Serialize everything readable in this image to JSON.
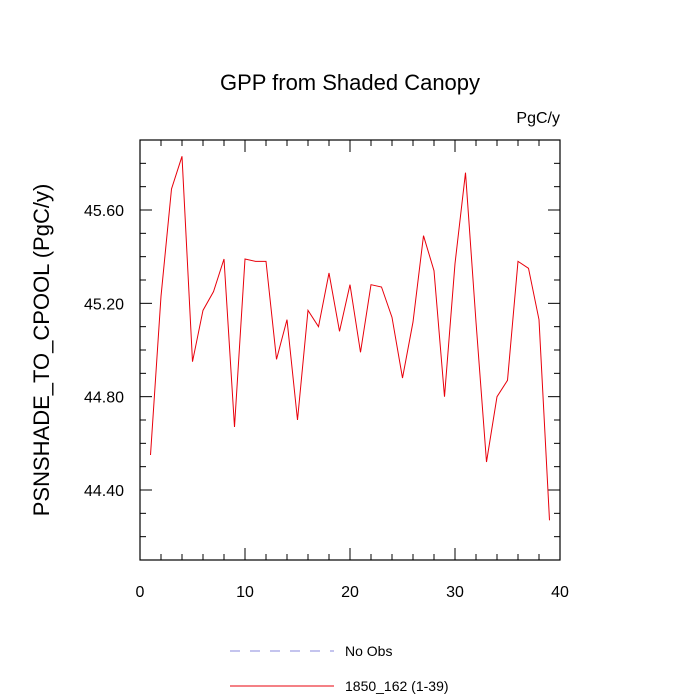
{
  "chart_data": {
    "type": "line",
    "title": "GPP from Shaded Canopy",
    "units": "PgC/y",
    "xlabel": "",
    "ylabel": "PSNSHADE_TO_CPOOL  (PgC/y)",
    "xlim": [
      0,
      40
    ],
    "ylim": [
      44.1,
      45.9
    ],
    "x_ticks": [
      0,
      10,
      20,
      30,
      40
    ],
    "x_tick_labels": [
      "0",
      "10",
      "20",
      "30",
      "40"
    ],
    "y_ticks": [
      44.4,
      44.8,
      45.2,
      45.6
    ],
    "y_tick_labels": [
      "44.40",
      "44.80",
      "45.20",
      "45.60"
    ],
    "grid": false,
    "legend_position": "bottom",
    "series": [
      {
        "name": "No Obs",
        "color": "#8888dd",
        "dash": true,
        "x": [],
        "values": []
      },
      {
        "name": "1850_162 (1-39)",
        "color": "#e8000b",
        "dash": false,
        "x": [
          1,
          2,
          3,
          4,
          5,
          6,
          7,
          8,
          9,
          10,
          11,
          12,
          13,
          14,
          15,
          16,
          17,
          18,
          19,
          20,
          21,
          22,
          23,
          24,
          25,
          26,
          27,
          28,
          29,
          30,
          31,
          32,
          33,
          34,
          35,
          36,
          37,
          38,
          39
        ],
        "values": [
          44.55,
          45.23,
          45.69,
          45.83,
          44.95,
          45.17,
          45.25,
          45.39,
          44.67,
          45.39,
          45.38,
          45.38,
          44.96,
          45.13,
          44.7,
          45.17,
          45.1,
          45.33,
          45.08,
          45.28,
          44.99,
          45.28,
          45.27,
          45.14,
          44.88,
          45.12,
          45.49,
          45.34,
          44.8,
          45.37,
          45.76,
          45.12,
          44.52,
          44.8,
          44.87,
          45.38,
          45.35,
          45.13,
          44.27
        ]
      }
    ]
  }
}
